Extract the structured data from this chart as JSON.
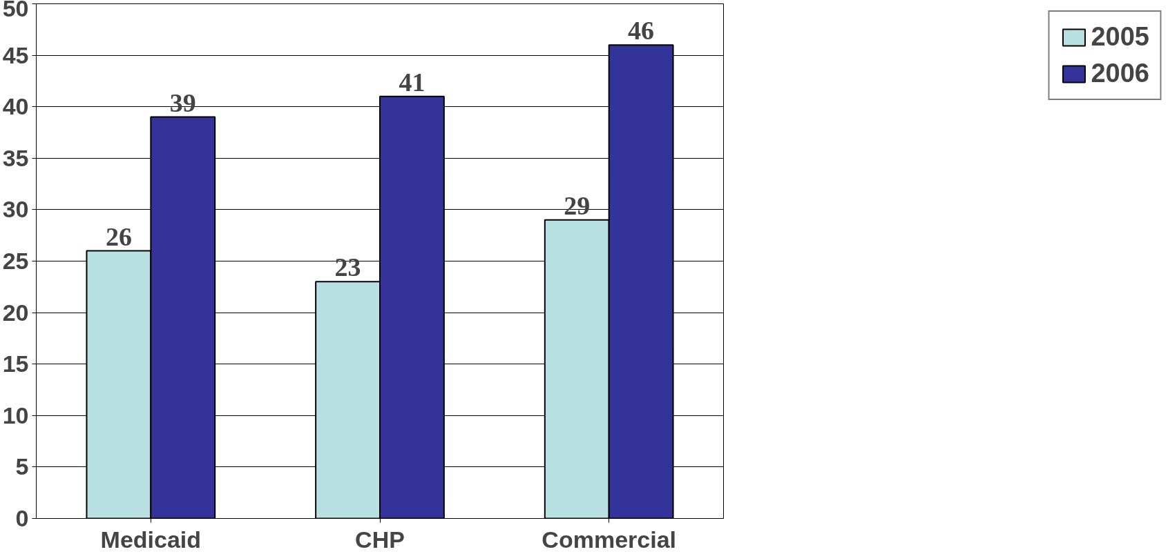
{
  "chart_data": {
    "type": "bar",
    "categories": [
      "Medicaid",
      "CHP",
      "Commercial"
    ],
    "series": [
      {
        "name": "2005",
        "color": "#b8e0e2",
        "values": [
          26,
          23,
          29
        ]
      },
      {
        "name": "2006",
        "color": "#333399",
        "values": [
          39,
          41,
          46
        ]
      }
    ],
    "ylim": [
      0,
      50
    ],
    "yticks": [
      0,
      5,
      10,
      15,
      20,
      25,
      30,
      35,
      40,
      45,
      50
    ],
    "grid": "y",
    "legend": "right",
    "data_labels": true
  }
}
